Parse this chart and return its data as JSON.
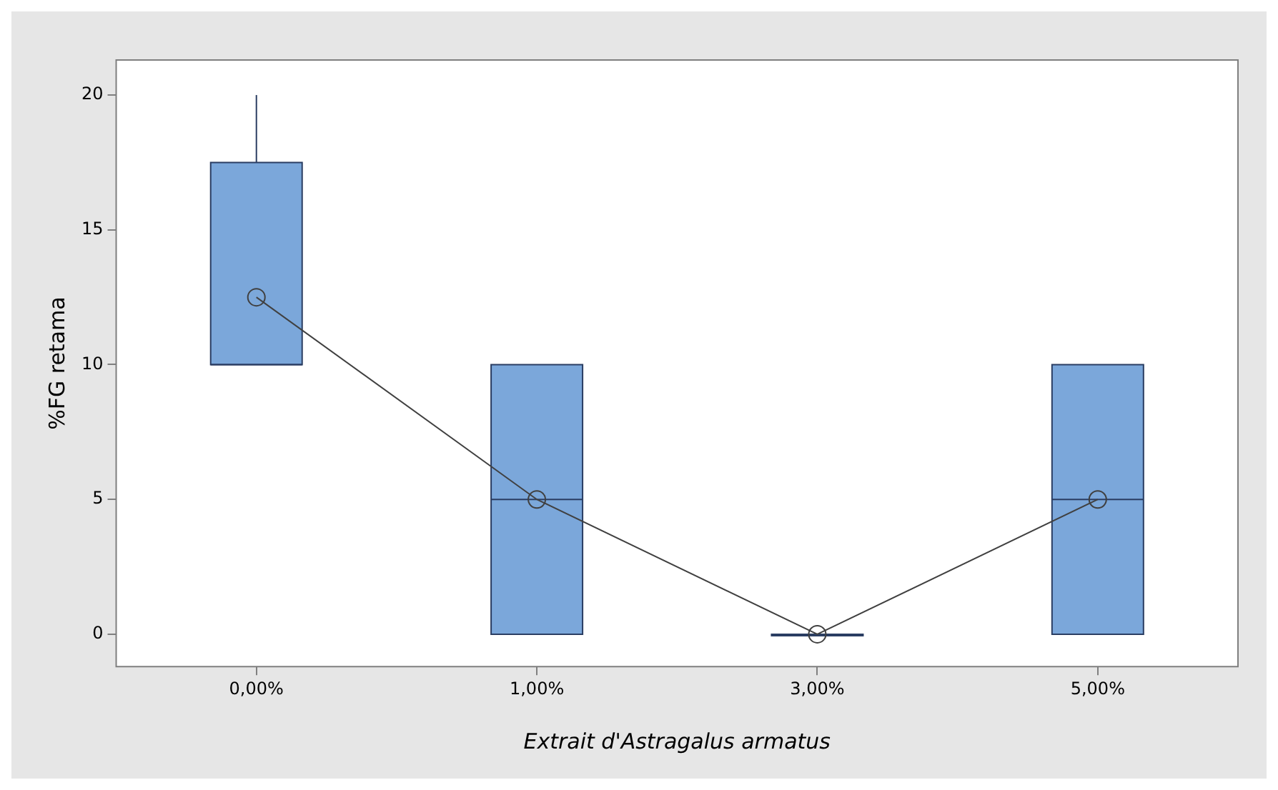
{
  "chart_data": {
    "type": "box",
    "xlabel": "Extrait d'Astragalus armatus",
    "ylabel": "%FG retama",
    "categories": [
      "0,00%",
      "1,00%",
      "3,00%",
      "5,00%"
    ],
    "color": "#7ba7da",
    "boxes": [
      {
        "low": 10,
        "q1": 10,
        "median": 10,
        "q3": 17.5,
        "high": 20
      },
      {
        "low": 0,
        "q1": 0,
        "median": 5,
        "q3": 10,
        "high": 10
      },
      {
        "low": 0,
        "q1": 0,
        "median": 0,
        "q3": 0,
        "high": 0
      },
      {
        "low": 0,
        "q1": 0,
        "median": 5,
        "q3": 10,
        "high": 10
      }
    ],
    "series": [
      {
        "type": "line",
        "color": "#404040",
        "values": [
          12.5,
          5,
          0,
          5
        ]
      }
    ],
    "marker": "circle",
    "ylim": [
      -1.2,
      21.3
    ],
    "yticks": [
      0,
      5,
      10,
      15,
      20
    ],
    "grid": false,
    "legend": false
  }
}
